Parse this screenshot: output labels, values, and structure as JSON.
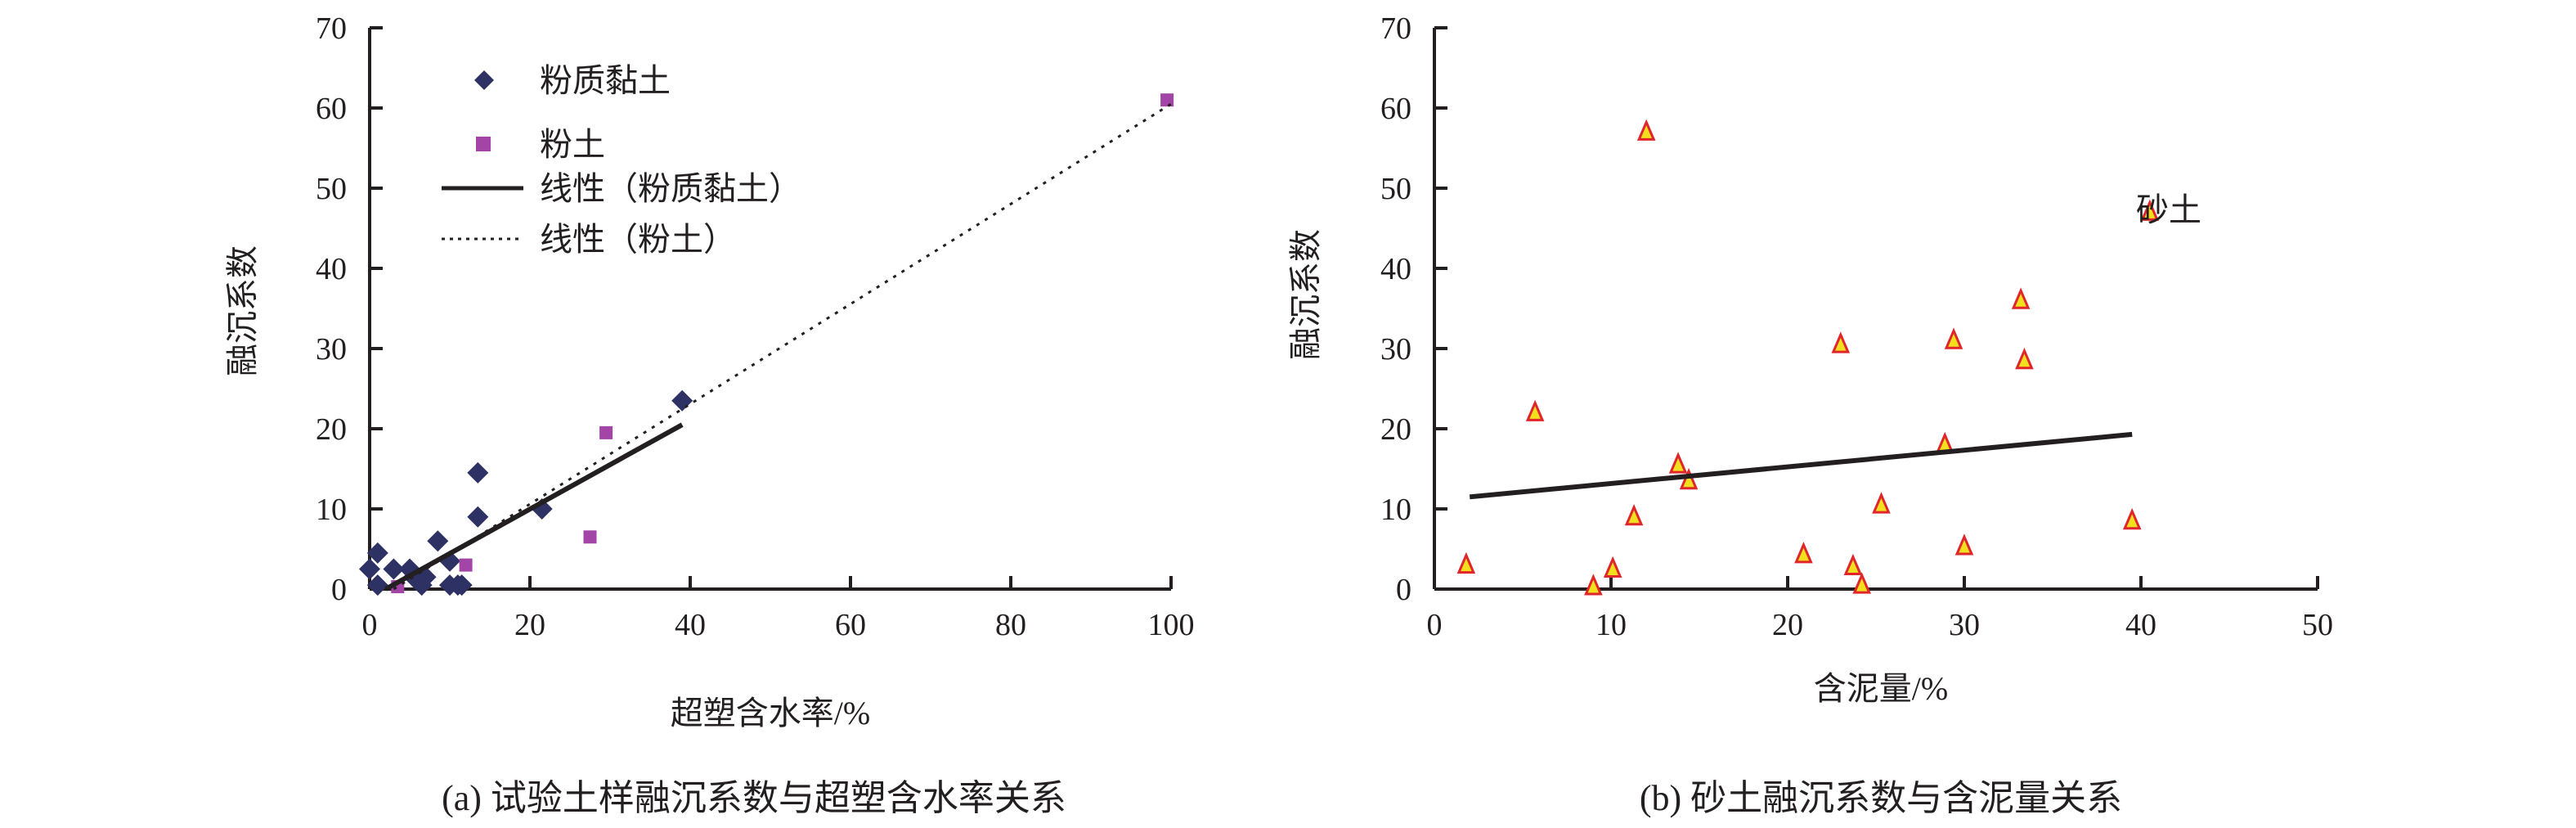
{
  "chart_data": [
    {
      "type": "scatter",
      "caption": "(a) 试验土样融沉系数与超塑含水率关系",
      "xlabel": "超塑含水率/%",
      "ylabel": "融沉系数",
      "xlim": [
        0,
        100
      ],
      "ylim": [
        0,
        70
      ],
      "xticks": [
        0,
        20,
        40,
        60,
        80,
        100
      ],
      "yticks": [
        0,
        10,
        20,
        30,
        40,
        50,
        60,
        70
      ],
      "legend_position": "top-left",
      "series": [
        {
          "name": "粉质黏土",
          "marker": "diamond",
          "color": "#2e3163",
          "points": [
            [
              0,
              2.5
            ],
            [
              1,
              4.5
            ],
            [
              1,
              0.5
            ],
            [
              3,
              2.5
            ],
            [
              5,
              2.5
            ],
            [
              5.5,
              1.5
            ],
            [
              6,
              1
            ],
            [
              6.5,
              0.5
            ],
            [
              7,
              1.5
            ],
            [
              8.5,
              6
            ],
            [
              10,
              3.5
            ],
            [
              10,
              0.5
            ],
            [
              11,
              0.5
            ],
            [
              11.5,
              0.5
            ],
            [
              13.5,
              14.5
            ],
            [
              13.5,
              9
            ],
            [
              21.5,
              10
            ],
            [
              39,
              23.5
            ]
          ]
        },
        {
          "name": "粉土",
          "marker": "square",
          "color": "#a245a6",
          "points": [
            [
              3.5,
              0.3
            ],
            [
              12,
              3
            ],
            [
              27.5,
              6.5
            ],
            [
              29.5,
              19.5
            ],
            [
              99.5,
              61
            ]
          ]
        },
        {
          "name": "线性（粉质黏土）",
          "type": "line",
          "style": "solid",
          "color": "#231f20",
          "points": [
            [
              2,
              0
            ],
            [
              39,
              20.5
            ]
          ]
        },
        {
          "name": "线性（粉土）",
          "type": "line",
          "style": "dotted",
          "color": "#231f20",
          "points": [
            [
              3,
              0
            ],
            [
              100,
              60.5
            ]
          ]
        }
      ]
    },
    {
      "type": "scatter",
      "caption": "(b) 砂土融沉系数与含泥量关系",
      "xlabel": "含泥量/%",
      "ylabel": "融沉系数",
      "xlim": [
        0,
        50
      ],
      "ylim": [
        0,
        70
      ],
      "xticks": [
        0,
        10,
        20,
        30,
        40,
        50
      ],
      "yticks": [
        0,
        10,
        20,
        30,
        40,
        50,
        60,
        70
      ],
      "legend_position": "right",
      "series": [
        {
          "name": "砂土",
          "marker": "triangle",
          "color": "#f2e01f",
          "edge": "#e0262b",
          "points": [
            [
              1.8,
              3
            ],
            [
              5.7,
              22
            ],
            [
              9,
              0.3
            ],
            [
              10.1,
              2.5
            ],
            [
              11.3,
              9
            ],
            [
              12,
              57
            ],
            [
              13.8,
              15.5
            ],
            [
              14.4,
              13.5
            ],
            [
              20.9,
              4.3
            ],
            [
              23,
              30.5
            ],
            [
              23.7,
              2.8
            ],
            [
              24.2,
              0.5
            ],
            [
              25.3,
              10.5
            ],
            [
              28.9,
              18
            ],
            [
              29.4,
              31
            ],
            [
              30,
              5.3
            ],
            [
              33.2,
              36
            ],
            [
              33.4,
              28.5
            ],
            [
              39.5,
              8.5
            ]
          ]
        },
        {
          "name": "trend",
          "type": "line",
          "style": "solid",
          "color": "#231f20",
          "points": [
            [
              2,
              11.5
            ],
            [
              39.5,
              19.3
            ]
          ]
        }
      ]
    }
  ]
}
